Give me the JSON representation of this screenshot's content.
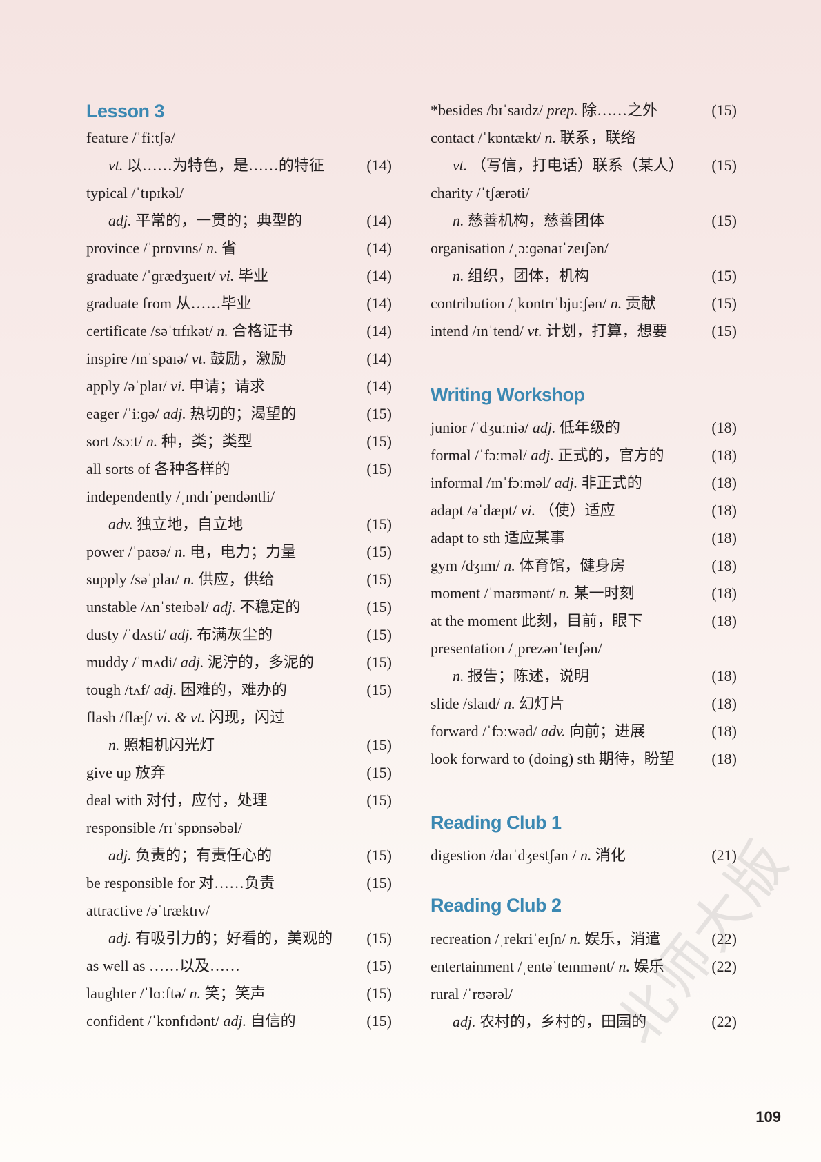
{
  "columns": [
    {
      "sections": [
        {
          "heading": "Lesson 3",
          "lines": [
            {
              "head": "feature /ˈfiːtʃə/",
              "pos": "",
              "cn": "",
              "page": ""
            },
            {
              "indent": true,
              "head": "",
              "pos": "vt.",
              "cn": " 以……为特色，是……的特征",
              "page": "(14)"
            },
            {
              "head": "typical /ˈtɪpɪkəl/",
              "pos": "",
              "cn": "",
              "page": ""
            },
            {
              "indent": true,
              "head": "",
              "pos": "adj.",
              "cn": " 平常的，一贯的；典型的",
              "page": "(14)"
            },
            {
              "head": "province /ˈprɒvɪns/ ",
              "pos": "n.",
              "cn": " 省",
              "page": "(14)"
            },
            {
              "head": "graduate /ˈɡrædʒueɪt/ ",
              "pos": "vi.",
              "cn": " 毕业",
              "page": "(14)"
            },
            {
              "head": "graduate from ",
              "pos": "",
              "cn": "从……毕业",
              "page": "(14)"
            },
            {
              "head": "certificate /səˈtɪfɪkət/ ",
              "pos": "n.",
              "cn": " 合格证书",
              "page": "(14)"
            },
            {
              "head": "inspire /ɪnˈspaɪə/ ",
              "pos": "vt.",
              "cn": " 鼓励，激励",
              "page": "(14)"
            },
            {
              "head": "apply /əˈplaɪ/ ",
              "pos": "vi.",
              "cn": " 申请；请求",
              "page": "(14)"
            },
            {
              "head": "eager /ˈiːɡə/ ",
              "pos": "adj.",
              "cn": " 热切的；渴望的",
              "page": "(15)"
            },
            {
              "head": "sort /sɔːt/ ",
              "pos": "n.",
              "cn": " 种，类；类型",
              "page": "(15)"
            },
            {
              "head": "all sorts of ",
              "pos": "",
              "cn": "各种各样的",
              "page": "(15)"
            },
            {
              "head": "independently /ˌɪndɪˈpendəntli/",
              "pos": "",
              "cn": "",
              "page": ""
            },
            {
              "indent": true,
              "head": "",
              "pos": "adv.",
              "cn": " 独立地，自立地",
              "page": "(15)"
            },
            {
              "head": "power /ˈpaʊə/ ",
              "pos": "n.",
              "cn": " 电，电力；力量",
              "page": "(15)"
            },
            {
              "head": "supply /səˈplaɪ/ ",
              "pos": "n.",
              "cn": " 供应，供给",
              "page": "(15)"
            },
            {
              "head": "unstable /ʌnˈsteɪbəl/ ",
              "pos": "adj.",
              "cn": " 不稳定的",
              "page": "(15)"
            },
            {
              "head": "dusty /ˈdʌsti/ ",
              "pos": "adj.",
              "cn": " 布满灰尘的",
              "page": "(15)"
            },
            {
              "head": "muddy /ˈmʌdi/ ",
              "pos": "adj.",
              "cn": " 泥泞的，多泥的",
              "page": "(15)"
            },
            {
              "head": "tough /tʌf/ ",
              "pos": "adj.",
              "cn": " 困难的，难办的",
              "page": "(15)"
            },
            {
              "head": "flash /flæʃ/ ",
              "pos": "vi. & vt.",
              "cn": " 闪现，闪过",
              "page": ""
            },
            {
              "indent": true,
              "head": "",
              "pos": "n.",
              "cn": " 照相机闪光灯",
              "page": "(15)"
            },
            {
              "head": "give up ",
              "pos": "",
              "cn": "放弃",
              "page": "(15)"
            },
            {
              "head": "deal with ",
              "pos": "",
              "cn": "对付，应付，处理",
              "page": "(15)"
            },
            {
              "head": "responsible /rɪˈspɒnsəbəl/",
              "pos": "",
              "cn": "",
              "page": ""
            },
            {
              "indent": true,
              "head": "",
              "pos": "adj.",
              "cn": " 负责的；有责任心的",
              "page": "(15)"
            },
            {
              "head": "be responsible for ",
              "pos": "",
              "cn": "对……负责",
              "page": "(15)"
            },
            {
              "head": "attractive /əˈtræktɪv/",
              "pos": "",
              "cn": "",
              "page": ""
            },
            {
              "indent": true,
              "head": "",
              "pos": "adj.",
              "cn": " 有吸引力的；好看的，美观的",
              "page": "(15)"
            },
            {
              "head": "as well as ",
              "pos": "",
              "cn": "……以及……",
              "page": "(15)"
            },
            {
              "head": "laughter /ˈlɑːftə/ ",
              "pos": "n.",
              "cn": " 笑；笑声",
              "page": "(15)"
            },
            {
              "head": "confident /ˈkɒnfɪdənt/ ",
              "pos": "adj.",
              "cn": " 自信的",
              "page": "(15)"
            }
          ]
        }
      ]
    },
    {
      "sections": [
        {
          "heading": "",
          "lines": [
            {
              "head": "*besides /bɪˈsaɪdz/ ",
              "pos": "prep.",
              "cn": " 除……之外",
              "page": "(15)"
            },
            {
              "head": "contact /ˈkɒntækt/ ",
              "pos": "n.",
              "cn": " 联系，联络",
              "page": ""
            },
            {
              "indent": true,
              "head": "",
              "pos": "vt.",
              "cn": " （写信，打电话）联系（某人）",
              "page": "(15)"
            },
            {
              "head": "charity /ˈtʃærəti/",
              "pos": "",
              "cn": "",
              "page": ""
            },
            {
              "indent": true,
              "head": "",
              "pos": "n.",
              "cn": " 慈善机构，慈善团体",
              "page": "(15)"
            },
            {
              "head": "organisation /ˌɔːɡənaɪˈzeɪʃən/",
              "pos": "",
              "cn": "",
              "page": ""
            },
            {
              "indent": true,
              "head": "",
              "pos": "n.",
              "cn": " 组织，团体，机构",
              "page": "(15)"
            },
            {
              "head": "contribution /ˌkɒntrɪˈbjuːʃən/ ",
              "pos": "n.",
              "cn": " 贡献",
              "page": "(15)"
            },
            {
              "head": "intend /ɪnˈtend/ ",
              "pos": "vt.",
              "cn": " 计划，打算，想要",
              "page": "(15)"
            }
          ]
        },
        {
          "heading": "Writing Workshop",
          "lines": [
            {
              "head": "junior /ˈdʒuːniə/ ",
              "pos": "adj.",
              "cn": " 低年级的",
              "page": "(18)"
            },
            {
              "head": "formal /ˈfɔːməl/ ",
              "pos": "adj.",
              "cn": " 正式的，官方的",
              "page": "(18)"
            },
            {
              "head": "informal /ɪnˈfɔːməl/ ",
              "pos": "adj.",
              "cn": " 非正式的",
              "page": "(18)"
            },
            {
              "head": "adapt /əˈdæpt/ ",
              "pos": "vi.",
              "cn": " （使）适应",
              "page": "(18)"
            },
            {
              "head": "adapt to sth ",
              "pos": "",
              "cn": "适应某事",
              "page": "(18)"
            },
            {
              "head": "gym /dʒɪm/ ",
              "pos": "n.",
              "cn": " 体育馆，健身房",
              "page": "(18)"
            },
            {
              "head": "moment /ˈməʊmənt/ ",
              "pos": "n.",
              "cn": " 某一时刻",
              "page": "(18)"
            },
            {
              "head": "at the moment ",
              "pos": "",
              "cn": "此刻，目前，眼下",
              "page": "(18)"
            },
            {
              "head": "presentation /ˌprezənˈteɪʃən/",
              "pos": "",
              "cn": "",
              "page": ""
            },
            {
              "indent": true,
              "head": "",
              "pos": "n.",
              "cn": " 报告；陈述，说明",
              "page": "(18)"
            },
            {
              "head": "slide /slaɪd/ ",
              "pos": "n.",
              "cn": " 幻灯片",
              "page": "(18)"
            },
            {
              "head": "forward /ˈfɔːwəd/ ",
              "pos": "adv.",
              "cn": " 向前；进展",
              "page": "(18)"
            },
            {
              "head": "look forward to (doing) sth ",
              "pos": "",
              "cn": "期待，盼望",
              "page": "(18)"
            }
          ]
        },
        {
          "heading": "Reading Club 1",
          "lines": [
            {
              "head": "digestion /daɪˈdʒestʃən / ",
              "pos": "n.",
              "cn": " 消化",
              "page": "(21)"
            }
          ]
        },
        {
          "heading": "Reading Club 2",
          "lines": [
            {
              "head": "recreation /ˌrekriˈeɪʃn/ ",
              "pos": "n.",
              "cn": " 娱乐，消遣",
              "page": "(22)"
            },
            {
              "head": "entertainment /ˌentəˈteɪnmənt/ ",
              "pos": "n.",
              "cn": " 娱乐",
              "page": "(22)"
            },
            {
              "head": "rural /ˈrʊərəl/",
              "pos": "",
              "cn": "",
              "page": ""
            },
            {
              "indent": true,
              "head": "",
              "pos": "adj.",
              "cn": " 农村的，乡村的，田园的",
              "page": "(22)"
            }
          ]
        }
      ]
    }
  ],
  "page_number": "109",
  "watermark": "北师大版",
  "colors": {
    "heading": "#3b88b2",
    "text": "#231f20"
  }
}
